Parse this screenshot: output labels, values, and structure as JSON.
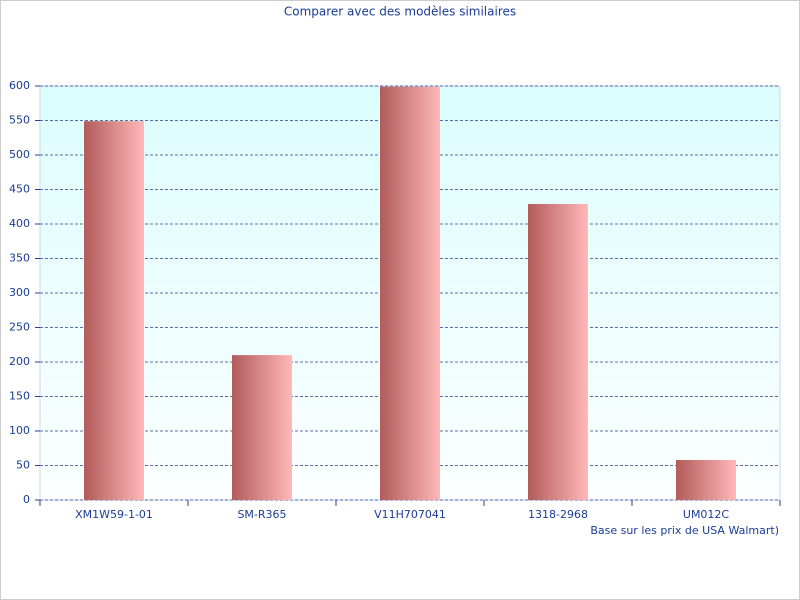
{
  "chart_data": {
    "type": "bar",
    "title": "Comparer avec des modèles similaires",
    "note": "Base sur les prix de USA Walmart)",
    "categories": [
      "XM1W59-1-01",
      "SM-R365",
      "V11H707041",
      "1318-2968",
      "UM012C"
    ],
    "values": [
      549,
      210,
      599,
      429,
      58
    ],
    "color": [
      "#b35b5b",
      "#ffb8b8"
    ],
    "ylim": [
      0,
      600
    ],
    "yticks": [
      0,
      50,
      100,
      150,
      200,
      250,
      300,
      350,
      400,
      450,
      500,
      550,
      600
    ],
    "grid": true
  }
}
